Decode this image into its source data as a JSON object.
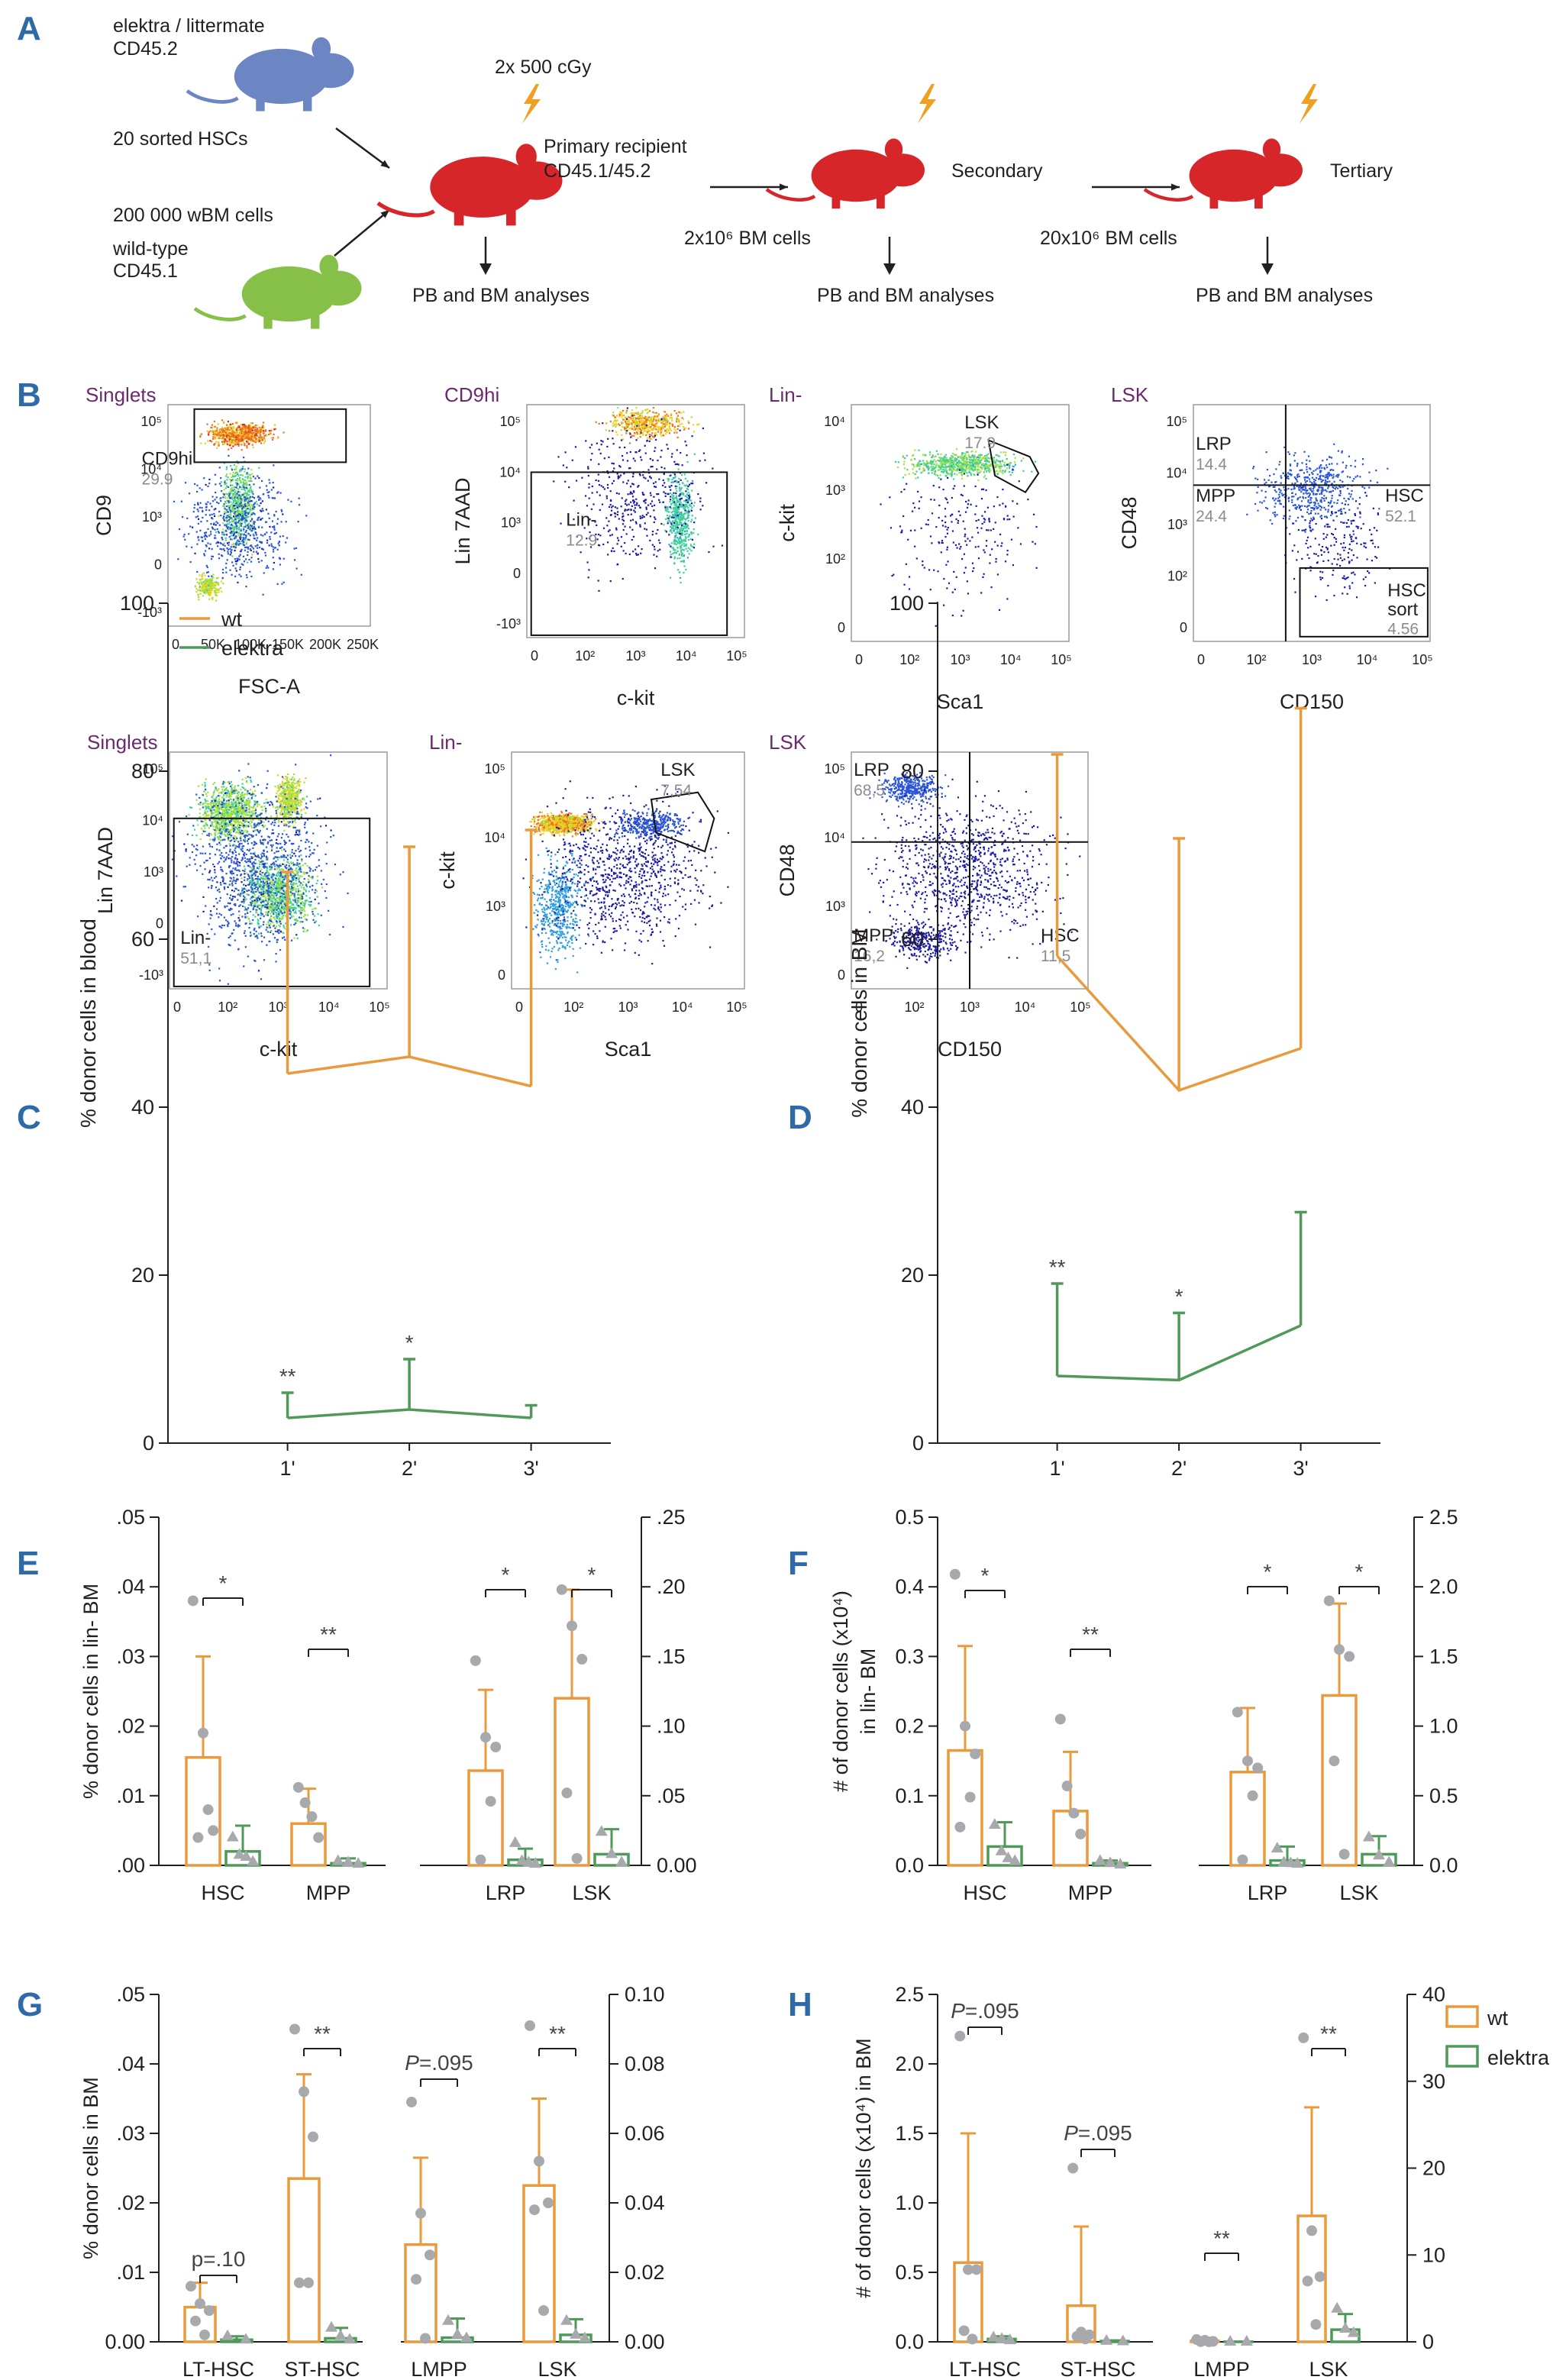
{
  "panel_labels": [
    "A",
    "B",
    "C",
    "D",
    "E",
    "F",
    "G",
    "H"
  ],
  "colors": {
    "wt": "#e89a3c",
    "elektra": "#4f9a5a",
    "dot": "#a7a9ac",
    "panel_label": "#2e6aa8",
    "gate_title": "#6b2a6e",
    "axis": "#231f20",
    "pct": "#8c8c8c",
    "mouse_red": "#d7262a",
    "mouse_blue": "#6c86c4",
    "mouse_green": "#86c049",
    "bolt": "#f0a020"
  },
  "panelA": {
    "donor_elektra": [
      "elektra / littermate",
      "CD45.2",
      "20 sorted HSCs"
    ],
    "donor_wt": [
      "200 000 wBM cells",
      "wild-type",
      "CD45.1"
    ],
    "dose": "2x 500 cGy",
    "primary": [
      "Primary recipient",
      "CD45.1/45.2"
    ],
    "secondary": "Secondary",
    "tertiary": "Tertiary",
    "transfer1": "2x10^6 BM cells",
    "transfer2": "20x10^6 BM cells",
    "analysis": "PB and BM analyses",
    "icons": [
      "mouse-icon",
      "lightning-bolt-icon",
      "arrow-icon"
    ]
  },
  "panelB": {
    "plots": [
      {
        "id": "b1",
        "title": "Singlets",
        "xlabel": "FSC-A",
        "ylabel": "CD9",
        "xticks": [
          "0",
          "50K",
          "100K",
          "150K",
          "200K",
          "250K"
        ],
        "yticks": [
          "10^5",
          "10^4",
          "10^3",
          "0",
          "-10^3"
        ],
        "gates": [
          {
            "name": "CD9hi",
            "value": "29.9"
          }
        ]
      },
      {
        "id": "b2",
        "title": "CD9hi",
        "xlabel": "c-kit",
        "ylabel": "Lin 7AAD",
        "xticks": [
          "0",
          "10^2",
          "10^3",
          "10^4",
          "10^5"
        ],
        "yticks": [
          "10^5",
          "10^4",
          "10^3",
          "0",
          "-10^3"
        ],
        "gates": [
          {
            "name": "Lin-",
            "value": "12.9"
          }
        ]
      },
      {
        "id": "b3",
        "title": "Lin-",
        "xlabel": "Sca1",
        "ylabel": "c-kit",
        "xticks": [
          "0",
          "10^2",
          "10^3",
          "10^4",
          "10^5"
        ],
        "yticks": [
          "10^4",
          "10^3",
          "10^2",
          "0"
        ],
        "gates": [
          {
            "name": "LSK",
            "value": "17.9"
          }
        ]
      },
      {
        "id": "b4",
        "title": "LSK",
        "xlabel": "CD150",
        "ylabel": "CD48",
        "xticks": [
          "0",
          "10^2",
          "10^3",
          "10^4",
          "10^5"
        ],
        "yticks": [
          "10^5",
          "10^4",
          "10^3",
          "10^2",
          "0"
        ],
        "gates": [
          {
            "name": "LRP",
            "value": "14.4"
          },
          {
            "name": "MPP",
            "value": "24.4"
          },
          {
            "name": "HSC",
            "value": "52.1"
          },
          {
            "name": "HSC sort",
            "value": "4.56"
          }
        ]
      },
      {
        "id": "b5",
        "title": "Singlets",
        "xlabel": "c-kit",
        "ylabel": "Lin 7AAD",
        "xticks": [
          "0",
          "10^2",
          "10^3",
          "10^4",
          "10^5"
        ],
        "yticks": [
          "10^5",
          "10^4",
          "10^3",
          "0",
          "-10^3"
        ],
        "gates": [
          {
            "name": "Lin-",
            "value": "51,1"
          }
        ]
      },
      {
        "id": "b6",
        "title": "Lin-",
        "xlabel": "Sca1",
        "ylabel": "c-kit",
        "xticks": [
          "0",
          "10^2",
          "10^3",
          "10^4",
          "10^5"
        ],
        "yticks": [
          "10^5",
          "10^4",
          "10^3",
          "0"
        ],
        "gates": [
          {
            "name": "LSK",
            "value": "7,54"
          }
        ]
      },
      {
        "id": "b7",
        "title": "LSK",
        "xlabel": "CD150",
        "ylabel": "CD48",
        "xticks": [
          "0",
          "10^2",
          "10^3",
          "10^4",
          "10^5"
        ],
        "yticks": [
          "10^5",
          "10^4",
          "10^3",
          "0"
        ],
        "gates": [
          {
            "name": "LRP",
            "value": "68,5"
          },
          {
            "name": "MPP",
            "value": "16,2"
          },
          {
            "name": "HSC",
            "value": "11,5"
          }
        ]
      }
    ]
  },
  "legend": {
    "wt": "wt",
    "elektra": "elektra"
  },
  "chart_data": [
    {
      "panel": "C",
      "type": "line",
      "ylabel": "% donor cells in blood",
      "ylim": [
        0,
        100
      ],
      "yticks": [
        "0",
        "20",
        "40",
        "60",
        "80",
        "100"
      ],
      "categories": [
        "1'",
        "2'",
        "3'"
      ],
      "series": [
        {
          "name": "wt",
          "values": [
            44,
            46,
            42.5
          ],
          "err_upper": [
            68,
            71,
            73
          ]
        },
        {
          "name": "elektra",
          "values": [
            3,
            4,
            3
          ],
          "err_upper": [
            6,
            10,
            4.5
          ]
        }
      ],
      "annotations": [
        "**",
        "*",
        ""
      ],
      "legend": "top-left"
    },
    {
      "panel": "D",
      "type": "line",
      "ylabel": "% donor cells in BM",
      "ylim": [
        0,
        100
      ],
      "yticks": [
        "0",
        "20",
        "40",
        "60",
        "80",
        "100"
      ],
      "categories": [
        "1'",
        "2'",
        "3'"
      ],
      "series": [
        {
          "name": "wt",
          "values": [
            58,
            42,
            47
          ],
          "err_upper": [
            82,
            72,
            87.5
          ]
        },
        {
          "name": "elektra",
          "values": [
            8,
            7.5,
            14
          ],
          "err_upper": [
            19,
            15.5,
            27.5
          ]
        }
      ],
      "annotations": [
        "**",
        "*",
        ""
      ]
    },
    {
      "panel": "E",
      "type": "bar",
      "ylabel": "% donor cells in lin- BM",
      "categories": [
        "HSC",
        "MPP",
        "LRP",
        "LSK"
      ],
      "ylim_left": [
        0,
        0.05
      ],
      "ylim_right": [
        0,
        0.25
      ],
      "yticks_left": [
        ".00",
        ".01",
        ".02",
        ".03",
        ".04",
        ".05"
      ],
      "yticks_right": [
        "0.00",
        ".05",
        ".10",
        ".15",
        ".20",
        ".25"
      ],
      "series": [
        {
          "name": "wt",
          "values": [
            0.0155,
            0.006,
            0.068,
            0.12
          ],
          "err": [
            0.0145,
            0.005,
            0.058,
            0.078
          ]
        },
        {
          "name": "elektra",
          "values": [
            0.002,
            0.0003,
            0.004,
            0.008
          ],
          "err": [
            0.0037,
            0.0007,
            0.008,
            0.018
          ]
        }
      ],
      "points": {
        "wt": [
          [
            0.038,
            0.019,
            0.005,
            0.004,
            0.008
          ],
          [
            0.0112,
            0.009,
            0.007,
            0.004
          ],
          [
            0.147,
            0.092,
            0.085,
            0.004,
            0.046
          ],
          [
            0.198,
            0.172,
            0.148,
            0.052,
            0.005
          ]
        ],
        "elektra": [
          [
            0.004,
            0.0015,
            0.0012,
            0.0005
          ],
          [
            0.0006,
            0.0004,
            0.0002
          ],
          [
            0.016,
            0.003,
            0.002,
            0.001
          ],
          [
            0.024,
            0.008,
            0.002
          ]
        ]
      },
      "significance": [
        "*",
        "**",
        "*",
        "*"
      ]
    },
    {
      "panel": "F",
      "type": "bar",
      "ylabel": [
        "# of donor cells (x10^4)",
        "in lin- BM"
      ],
      "categories": [
        "HSC",
        "MPP",
        "LRP",
        "LSK"
      ],
      "ylim_left": [
        0,
        0.5
      ],
      "ylim_right": [
        0,
        2.5
      ],
      "yticks_left": [
        "0.0",
        "0.1",
        "0.2",
        "0.3",
        "0.4",
        "0.5"
      ],
      "yticks_right": [
        "0.0",
        "0.5",
        "1.0",
        "1.5",
        "2.0",
        "2.5"
      ],
      "series": [
        {
          "name": "wt",
          "values": [
            0.165,
            0.078,
            0.67,
            1.22
          ],
          "err": [
            0.15,
            0.085,
            0.46,
            0.66
          ]
        },
        {
          "name": "elektra",
          "values": [
            0.027,
            0.003,
            0.035,
            0.08
          ],
          "err": [
            0.035,
            0.004,
            0.1,
            0.13
          ]
        }
      ],
      "points": {
        "wt": [
          [
            0.418,
            0.2,
            0.16,
            0.055,
            0.098
          ],
          [
            0.21,
            0.114,
            0.075,
            0.045
          ],
          [
            1.1,
            0.75,
            0.7,
            0.04,
            0.5
          ],
          [
            1.9,
            1.55,
            1.5,
            0.75,
            0.08
          ]
        ],
        "elektra": [
          [
            0.058,
            0.02,
            0.01,
            0.006
          ],
          [
            0.006,
            0.003,
            0.001
          ],
          [
            0.12,
            0.02,
            0.015,
            0.01
          ],
          [
            0.2,
            0.07,
            0.02
          ]
        ]
      },
      "significance": [
        "*",
        "**",
        "*",
        "*"
      ]
    },
    {
      "panel": "G",
      "type": "bar",
      "ylabel": "% donor cells in BM",
      "categories": [
        "LT-HSC",
        "ST-HSC",
        "LMPP",
        "LSK"
      ],
      "ylim_left": [
        0,
        0.05
      ],
      "ylim_right": [
        0,
        0.1
      ],
      "yticks_left": [
        "0.00",
        ".01",
        ".02",
        ".03",
        ".04",
        ".05"
      ],
      "yticks_right": [
        "0.00",
        "0.02",
        "0.04",
        "0.06",
        "0.08",
        "0.10"
      ],
      "series": [
        {
          "name": "wt",
          "values": [
            0.005,
            0.0235,
            0.028,
            0.045
          ],
          "err": [
            0.0035,
            0.015,
            0.025,
            0.025
          ]
        },
        {
          "name": "elektra",
          "values": [
            0.0003,
            0.0005,
            0.0012,
            0.002
          ],
          "err": [
            0.0005,
            0.0015,
            0.0055,
            0.0045
          ]
        }
      ],
      "points": {
        "wt": [
          [
            0.008,
            0.0055,
            0.0045,
            0.003,
            0.001
          ],
          [
            0.045,
            0.036,
            0.0295,
            0.0085,
            0.0085
          ],
          [
            0.069,
            0.037,
            0.025,
            0.018,
            0.001
          ],
          [
            0.091,
            0.052,
            0.04,
            0.038,
            0.009
          ]
        ],
        "elektra": [
          [
            0.0008,
            0.0003
          ],
          [
            0.002,
            0.0008,
            0.0003
          ],
          [
            0.006,
            0.002,
            0.001
          ],
          [
            0.006,
            0.002,
            0.001
          ]
        ]
      },
      "significance": [
        "p=.10",
        "**",
        "P=.095",
        "**"
      ]
    },
    {
      "panel": "H",
      "type": "bar",
      "ylabel": "# of donor cells (x10^4) in BM",
      "categories": [
        "LT-HSC",
        "ST-HSC",
        "LMPP",
        "LSK"
      ],
      "ylim_left": [
        0,
        2.5
      ],
      "ylim_right": [
        0,
        40
      ],
      "yticks_left": [
        "0.0",
        "0.5",
        "1.0",
        "1.5",
        "2.0",
        "2.5"
      ],
      "yticks_right": [
        "0",
        "10",
        "20",
        "30",
        "40"
      ],
      "series": [
        {
          "name": "wt",
          "values": [
            0.57,
            0.26,
            0.1,
            14.5
          ],
          "err": [
            0.93,
            0.57,
            0.09,
            12.5
          ]
        },
        {
          "name": "elektra",
          "values": [
            0.02,
            0.005,
            0.005,
            1.4
          ],
          "err": [
            0.02,
            0.005,
            0.008,
            1.8
          ]
        }
      ],
      "points": {
        "wt": [
          [
            2.2,
            0.52,
            0.52,
            0.08,
            0.02
          ],
          [
            1.25,
            0.07,
            0.05,
            0.04,
            0.02
          ],
          [
            0.26,
            0.18,
            0.05,
            0.02,
            0.005
          ],
          [
            35,
            12.8,
            7.5,
            7,
            2
          ]
        ],
        "elektra": [
          [
            0.03,
            0.02,
            0.01
          ],
          [
            0.006,
            0.003
          ],
          [
            0.004,
            0.003
          ],
          [
            3.8,
            1.5,
            1
          ]
        ]
      },
      "significance": [
        "P=.095",
        "P=.095",
        "**",
        "**"
      ],
      "legend": "right"
    }
  ]
}
